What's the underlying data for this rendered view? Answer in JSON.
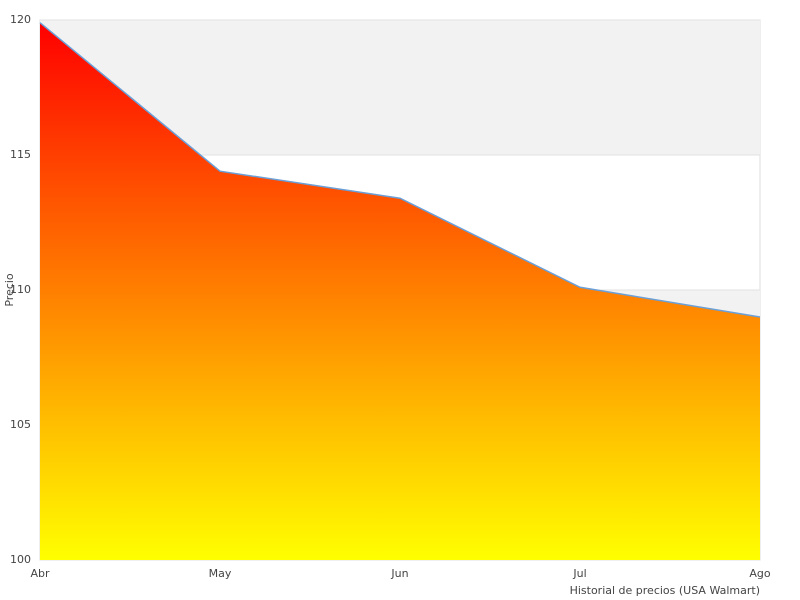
{
  "chart_data": {
    "type": "area",
    "x_label": "Historial de precios (USA Walmart)",
    "y_label": "Precio",
    "categories": [
      "Abr",
      "May",
      "Jun",
      "Jul",
      "Ago"
    ],
    "values": [
      119.9,
      114.4,
      113.4,
      110.1,
      109.0
    ],
    "line_color": "#6a9fd8",
    "gradient": [
      "#ff0000",
      "#ffff00"
    ],
    "ylim": [
      100,
      120
    ],
    "yticks": [
      100,
      105,
      110,
      115,
      120
    ],
    "grid": true,
    "band_color": "#f2f2f2"
  }
}
